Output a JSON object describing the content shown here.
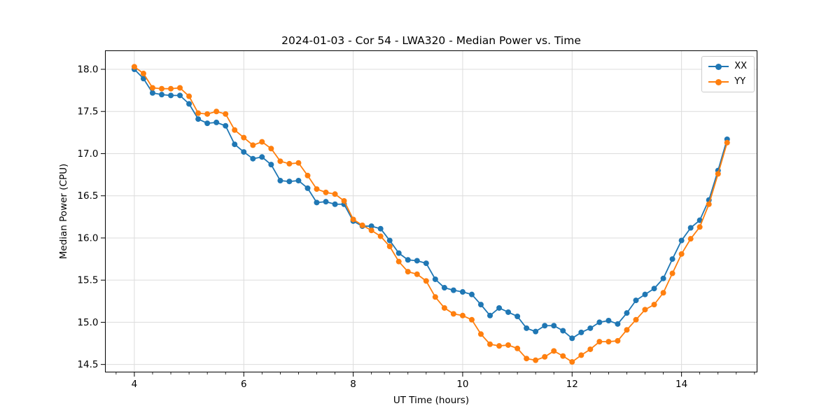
{
  "chart_data": {
    "type": "line",
    "title": "2024-01-03 - Cor 54 - LWA320 - Median Power vs. Time",
    "xlabel": "UT Time (hours)",
    "ylabel": "Median Power (CPU)",
    "xlim": [
      3.47,
      15.38
    ],
    "ylim": [
      14.41,
      18.22
    ],
    "x_ticks": [
      4,
      6,
      8,
      10,
      12,
      14
    ],
    "x_tick_labels": [
      "4",
      "6",
      "8",
      "10",
      "12",
      "14"
    ],
    "x_minor_step": 0.333333,
    "y_ticks": [
      14.5,
      15.0,
      15.5,
      16.0,
      16.5,
      17.0,
      17.5,
      18.0
    ],
    "y_tick_labels": [
      "14.5",
      "15.0",
      "15.5",
      "16.0",
      "16.5",
      "17.0",
      "17.5",
      "18.0"
    ],
    "grid": true,
    "legend_position": "upper right",
    "x": [
      4.0,
      4.167,
      4.333,
      4.5,
      4.667,
      4.833,
      5.0,
      5.167,
      5.333,
      5.5,
      5.667,
      5.833,
      6.0,
      6.167,
      6.333,
      6.5,
      6.667,
      6.833,
      7.0,
      7.167,
      7.333,
      7.5,
      7.667,
      7.833,
      8.0,
      8.167,
      8.333,
      8.5,
      8.667,
      8.833,
      9.0,
      9.167,
      9.333,
      9.5,
      9.667,
      9.833,
      10.0,
      10.167,
      10.333,
      10.5,
      10.667,
      10.833,
      11.0,
      11.167,
      11.333,
      11.5,
      11.667,
      11.833,
      12.0,
      12.167,
      12.333,
      12.5,
      12.667,
      12.833,
      13.0,
      13.167,
      13.333,
      13.5,
      13.667,
      13.833,
      14.0,
      14.167,
      14.333,
      14.5,
      14.667,
      14.833
    ],
    "series": [
      {
        "name": "XX",
        "color": "#1f77b4",
        "values": [
          18.0,
          17.89,
          17.72,
          17.7,
          17.69,
          17.69,
          17.59,
          17.41,
          17.36,
          17.37,
          17.33,
          17.11,
          17.02,
          16.94,
          16.96,
          16.87,
          16.68,
          16.67,
          16.68,
          16.59,
          16.42,
          16.43,
          16.4,
          16.4,
          16.2,
          16.14,
          16.14,
          16.11,
          15.97,
          15.82,
          15.74,
          15.73,
          15.7,
          15.51,
          15.41,
          15.38,
          15.36,
          15.33,
          15.21,
          15.08,
          15.17,
          15.12,
          15.07,
          14.93,
          14.89,
          14.96,
          14.96,
          14.9,
          14.81,
          14.88,
          14.93,
          15.0,
          15.02,
          14.98,
          15.11,
          15.26,
          15.33,
          15.4,
          15.52,
          15.75,
          15.97,
          16.12,
          16.21,
          16.45,
          16.8,
          17.17
        ]
      },
      {
        "name": "YY",
        "color": "#ff7f0e",
        "values": [
          18.03,
          17.95,
          17.78,
          17.77,
          17.77,
          17.78,
          17.68,
          17.48,
          17.47,
          17.5,
          17.47,
          17.28,
          17.19,
          17.1,
          17.14,
          17.06,
          16.91,
          16.88,
          16.89,
          16.74,
          16.58,
          16.54,
          16.52,
          16.44,
          16.22,
          16.15,
          16.09,
          16.02,
          15.9,
          15.72,
          15.6,
          15.57,
          15.49,
          15.3,
          15.17,
          15.1,
          15.08,
          15.03,
          14.86,
          14.74,
          14.72,
          14.73,
          14.69,
          14.57,
          14.55,
          14.59,
          14.66,
          14.6,
          14.53,
          14.61,
          14.68,
          14.77,
          14.77,
          14.78,
          14.91,
          15.03,
          15.15,
          15.21,
          15.35,
          15.58,
          15.81,
          15.99,
          16.13,
          16.4,
          16.76,
          17.13
        ]
      }
    ]
  },
  "style": {
    "grid_color": "#dcdcdc",
    "spine_color": "#000000",
    "tick_color": "#000000",
    "background": "#ffffff"
  }
}
